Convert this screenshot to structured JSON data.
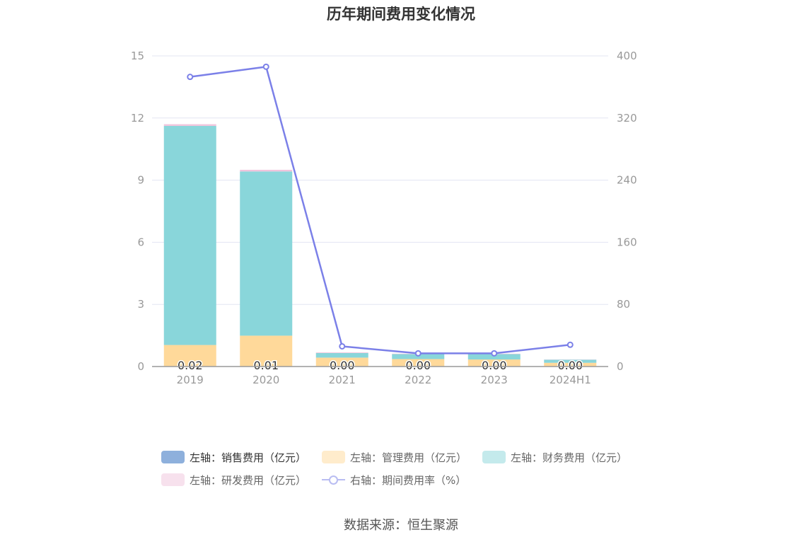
{
  "title": "历年期间费用变化情况",
  "source": "数据来源：恒生聚源",
  "chart_data": {
    "type": "bar",
    "stacked": true,
    "categories": [
      "2019",
      "2020",
      "2021",
      "2022",
      "2023",
      "2024H1"
    ],
    "left_axis": {
      "min": 0,
      "max": 15,
      "ticks": [
        "0",
        "3",
        "6",
        "9",
        "12",
        "15"
      ]
    },
    "right_axis": {
      "min": 0,
      "max": 400,
      "ticks": [
        "0",
        "80",
        "160",
        "240",
        "320",
        "400"
      ]
    },
    "grid": true,
    "legend_position": "bottom",
    "series": [
      {
        "name": "左轴：销售费用（亿元）",
        "axis": "left",
        "color": "#8eb0dc",
        "values": [
          0.02,
          0.01,
          0.0,
          0.0,
          0.0,
          0.0
        ]
      },
      {
        "name": "左轴：管理费用（亿元）",
        "axis": "left",
        "color": "#ffd99a",
        "values": [
          1.02,
          1.48,
          0.43,
          0.36,
          0.34,
          0.18
        ]
      },
      {
        "name": "左轴：财务费用（亿元）",
        "axis": "left",
        "color": "#89d6da",
        "values": [
          10.58,
          7.93,
          0.22,
          0.24,
          0.26,
          0.15
        ]
      },
      {
        "name": "左轴：研发费用（亿元）",
        "axis": "left",
        "color": "#f0c4dc",
        "values": [
          0.08,
          0.08,
          0.03,
          0.02,
          0.02,
          0.01
        ]
      },
      {
        "name": "右轴：期间费用率（%）",
        "axis": "right",
        "type": "line",
        "color": "#7b80e8",
        "values": [
          373,
          386,
          26,
          17,
          17,
          28
        ]
      }
    ],
    "bar_labels": [
      "0.02",
      "0.01",
      "0.00",
      "0.00",
      "0.00",
      "0.00"
    ]
  }
}
